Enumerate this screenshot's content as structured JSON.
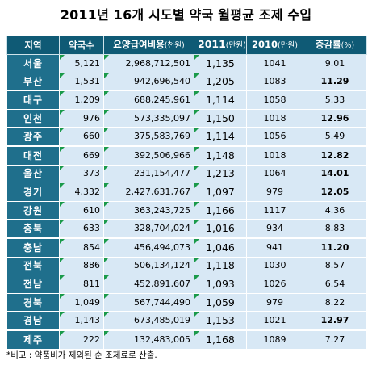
{
  "title": "2011년 16개 시도별 약국 월평균 조제 수입",
  "header": {
    "region": "지역",
    "pharmacies": "약국수",
    "cost_main": "요양급여비용",
    "cost_unit": "(천원)",
    "y2011": "2011",
    "y2011_unit": "(만원)",
    "y2010": "2010",
    "y2010_unit": "(만원)",
    "rate_main": "증감률",
    "rate_unit": "(%)"
  },
  "rows": [
    {
      "region": "서울",
      "pharmacies": "5,121",
      "cost": "2,968,712,501",
      "y2011": "1,135",
      "y2010": "1041",
      "rate": "9.01",
      "bold": false
    },
    {
      "region": "부산",
      "pharmacies": "1,531",
      "cost": "942,696,540",
      "y2011": "1,205",
      "y2010": "1083",
      "rate": "11.29",
      "bold": true
    },
    {
      "region": "대구",
      "pharmacies": "1,209",
      "cost": "688,245,961",
      "y2011": "1,114",
      "y2010": "1058",
      "rate": "5.33",
      "bold": false
    },
    {
      "region": "인천",
      "pharmacies": "976",
      "cost": "573,335,097",
      "y2011": "1,150",
      "y2010": "1018",
      "rate": "12.96",
      "bold": true
    },
    {
      "region": "광주",
      "pharmacies": "660",
      "cost": "375,583,769",
      "y2011": "1,114",
      "y2010": "1056",
      "rate": "5.49",
      "bold": false
    },
    {
      "region": "대전",
      "pharmacies": "669",
      "cost": "392,506,966",
      "y2011": "1,148",
      "y2010": "1018",
      "rate": "12.82",
      "bold": true
    },
    {
      "region": "울산",
      "pharmacies": "373",
      "cost": "231,154,477",
      "y2011": "1,213",
      "y2010": "1064",
      "rate": "14.01",
      "bold": true
    },
    {
      "region": "경기",
      "pharmacies": "4,332",
      "cost": "2,427,631,767",
      "y2011": "1,097",
      "y2010": "979",
      "rate": "12.05",
      "bold": true
    },
    {
      "region": "강원",
      "pharmacies": "610",
      "cost": "363,243,725",
      "y2011": "1,166",
      "y2010": "1117",
      "rate": "4.36",
      "bold": false
    },
    {
      "region": "충북",
      "pharmacies": "633",
      "cost": "328,704,024",
      "y2011": "1,016",
      "y2010": "934",
      "rate": "8.83",
      "bold": false
    },
    {
      "region": "충남",
      "pharmacies": "854",
      "cost": "456,494,073",
      "y2011": "1,046",
      "y2010": "941",
      "rate": "11.20",
      "bold": true
    },
    {
      "region": "전북",
      "pharmacies": "886",
      "cost": "506,134,124",
      "y2011": "1,118",
      "y2010": "1030",
      "rate": "8.57",
      "bold": false
    },
    {
      "region": "전남",
      "pharmacies": "811",
      "cost": "452,891,607",
      "y2011": "1,093",
      "y2010": "1026",
      "rate": "6.54",
      "bold": false
    },
    {
      "region": "경북",
      "pharmacies": "1,049",
      "cost": "567,744,490",
      "y2011": "1,059",
      "y2010": "979",
      "rate": "8.22",
      "bold": false
    },
    {
      "region": "경남",
      "pharmacies": "1,143",
      "cost": "673,485,019",
      "y2011": "1,153",
      "y2010": "1021",
      "rate": "12.97",
      "bold": true
    },
    {
      "region": "제주",
      "pharmacies": "222",
      "cost": "132,483,005",
      "y2011": "1,168",
      "y2010": "1089",
      "rate": "7.27",
      "bold": false
    }
  ],
  "note": "*비고 : 약품비가 제외된 순 조제료로 산출.",
  "colors": {
    "header_bg": "#0f5a75",
    "region_bg": "#1f6f8c",
    "cell_bg": "#d8e8f5",
    "marker": "#1a9a4a"
  }
}
